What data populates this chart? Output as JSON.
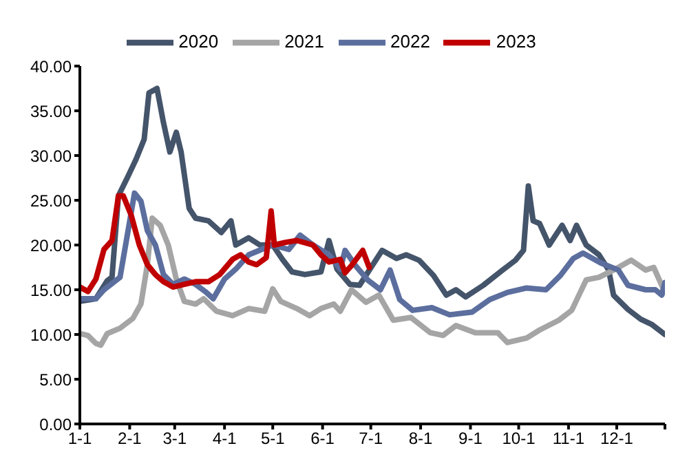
{
  "chart_data": {
    "type": "line",
    "legend": "top",
    "grid": false,
    "marker": "none",
    "line_style": "solid",
    "xlim": [
      "--01-01",
      "--12-31"
    ],
    "xticks": [
      {
        "value": "--01-01",
        "label": "1-1"
      },
      {
        "value": "--02-01",
        "label": "2-1"
      },
      {
        "value": "--03-01",
        "label": "3-1"
      },
      {
        "value": "--04-01",
        "label": "4-1"
      },
      {
        "value": "--05-01",
        "label": "5-1"
      },
      {
        "value": "--06-01",
        "label": "6-1"
      },
      {
        "value": "--07-01",
        "label": "7-1"
      },
      {
        "value": "--08-01",
        "label": "8-1"
      },
      {
        "value": "--09-01",
        "label": "9-1"
      },
      {
        "value": "--10-01",
        "label": "10-1"
      },
      {
        "value": "--11-01",
        "label": "11-1"
      },
      {
        "value": "--12-01",
        "label": "12-1"
      },
      {
        "value": "--12-31",
        "label": null
      }
    ],
    "ylim": [
      0,
      40
    ],
    "yticks": [
      {
        "value": 0,
        "label": "0.00"
      },
      {
        "value": 5,
        "label": "5.00"
      },
      {
        "value": 10,
        "label": "10.00"
      },
      {
        "value": 15,
        "label": "15.00"
      },
      {
        "value": 20,
        "label": "20.00"
      },
      {
        "value": 25,
        "label": "25.00"
      },
      {
        "value": 30,
        "label": "30.00"
      },
      {
        "value": 35,
        "label": "35.00"
      },
      {
        "value": 40,
        "label": "40.00"
      }
    ],
    "series": [
      {
        "name": "2020",
        "color": "#44546a",
        "x": [
          "--01-01",
          "--01-11",
          "--01-18",
          "--01-21",
          "--01-25",
          "--01-31",
          "--02-05",
          "--02-10",
          "--02-13",
          "--02-18",
          "--02-22",
          "--02-26",
          "--03-02",
          "--03-05",
          "--03-10",
          "--03-14",
          "--03-22",
          "--03-30",
          "--04-05",
          "--04-08",
          "--04-16",
          "--04-23",
          "--05-01",
          "--05-07",
          "--05-13",
          "--05-21",
          "--05-31",
          "--06-05",
          "--06-10",
          "--06-18",
          "--06-24",
          "--07-08",
          "--07-17",
          "--07-23",
          "--07-31",
          "--08-09",
          "--08-17",
          "--08-23",
          "--08-29",
          "--09-09",
          "--09-21",
          "--09-29",
          "--10-04",
          "--10-07",
          "--10-10",
          "--10-14",
          "--10-20",
          "--10-28",
          "--11-02",
          "--11-06",
          "--11-12",
          "--11-20",
          "--11-26",
          "--11-29",
          "--12-08",
          "--12-16",
          "--12-23",
          "--12-31"
        ],
        "values": [
          13.7,
          14,
          16,
          16.4,
          25.5,
          27.7,
          29.6,
          31.8,
          37,
          37.5,
          33.7,
          30.4,
          32.6,
          30.4,
          24.1,
          23,
          22.7,
          21.4,
          22.7,
          20,
          20.8,
          20,
          20,
          18.4,
          17,
          16.7,
          17,
          20.5,
          17.3,
          15.6,
          15.5,
          19.4,
          18.5,
          18.9,
          18.3,
          16.6,
          14.4,
          15,
          14.2,
          15.5,
          17.2,
          18.3,
          19.4,
          26.6,
          22.7,
          22.4,
          20,
          22.2,
          20.5,
          22.2,
          20,
          18.9,
          17.2,
          14.4,
          12.8,
          11.7,
          11.1,
          10
        ]
      },
      {
        "name": "2021",
        "color": "#a5a5a5",
        "x": [
          "--01-01",
          "--01-06",
          "--01-11",
          "--01-14",
          "--01-18",
          "--01-26",
          "--02-03",
          "--02-08",
          "--02-12",
          "--02-15",
          "--02-20",
          "--02-25",
          "--03-02",
          "--03-07",
          "--03-14",
          "--03-19",
          "--03-27",
          "--04-06",
          "--04-16",
          "--04-26",
          "--05-01",
          "--05-06",
          "--05-16",
          "--05-24",
          "--05-31",
          "--06-08",
          "--06-12",
          "--06-19",
          "--06-28",
          "--07-06",
          "--07-15",
          "--07-26",
          "--08-07",
          "--08-15",
          "--08-23",
          "--09-04",
          "--09-18",
          "--09-24",
          "--10-06",
          "--10-14",
          "--10-26",
          "--11-03",
          "--11-12",
          "--11-20",
          "--11-29",
          "--12-10",
          "--12-19",
          "--12-24",
          "--12-31"
        ],
        "values": [
          10.1,
          9.9,
          9,
          8.8,
          10.1,
          10.7,
          11.8,
          13.4,
          17.8,
          23,
          22.2,
          20,
          16.2,
          13.7,
          13.4,
          14,
          12.6,
          12.1,
          12.9,
          12.6,
          15.1,
          13.7,
          12.9,
          12.1,
          12.9,
          13.4,
          12.6,
          15,
          13.6,
          14.4,
          11.6,
          11.9,
          10.2,
          9.9,
          11,
          10.2,
          10.2,
          9.1,
          9.6,
          10.5,
          11.6,
          12.7,
          16.1,
          16.4,
          17.2,
          18.3,
          17.2,
          17.5,
          14.7
        ]
      },
      {
        "name": "2022",
        "color": "#5b6e9e",
        "x": [
          "--01-01",
          "--01-11",
          "--01-16",
          "--01-26",
          "--01-31",
          "--02-04",
          "--02-08",
          "--02-12",
          "--02-17",
          "--02-22",
          "--02-28",
          "--03-07",
          "--03-14",
          "--03-20",
          "--03-25",
          "--04-01",
          "--04-08",
          "--04-16",
          "--04-24",
          "--05-01",
          "--05-11",
          "--05-18",
          "--05-26",
          "--06-05",
          "--06-12",
          "--06-15",
          "--06-21",
          "--06-29",
          "--07-07",
          "--07-13",
          "--07-19",
          "--07-27",
          "--08-08",
          "--08-19",
          "--09-02",
          "--09-13",
          "--09-24",
          "--10-06",
          "--10-18",
          "--10-27",
          "--11-04",
          "--11-10",
          "--11-21",
          "--12-02",
          "--12-08",
          "--12-19",
          "--12-25",
          "--12-29",
          "--12-31"
        ],
        "values": [
          14,
          14,
          15,
          16.4,
          21.6,
          25.8,
          24.9,
          21.6,
          20,
          16.7,
          15.6,
          16.2,
          15.6,
          14.8,
          14,
          16.2,
          17.3,
          18.9,
          19.5,
          20,
          19.5,
          21.1,
          20,
          18.9,
          17.3,
          19.4,
          17.8,
          16.1,
          15,
          17.2,
          13.9,
          12.7,
          13,
          12.2,
          12.5,
          13.9,
          14.7,
          15.2,
          15,
          16.6,
          18.5,
          19.1,
          18,
          17.2,
          15.5,
          15,
          15,
          14.4,
          15.8
        ]
      },
      {
        "name": "2023",
        "color": "#c00000",
        "x": [
          "--01-01",
          "--01-06",
          "--01-11",
          "--01-16",
          "--01-21",
          "--01-25",
          "--01-28",
          "--02-02",
          "--02-07",
          "--02-12",
          "--02-17",
          "--02-22",
          "--02-28",
          "--03-07",
          "--03-14",
          "--03-22",
          "--03-29",
          "--04-06",
          "--04-11",
          "--04-16",
          "--04-21",
          "--04-27",
          "--04-30",
          "--05-02",
          "--05-09",
          "--05-16",
          "--05-26",
          "--05-31",
          "--06-05",
          "--06-12",
          "--06-15",
          "--06-19",
          "--06-26",
          "--06-30"
        ],
        "values": [
          15.3,
          14.8,
          16.2,
          19.5,
          20.5,
          25.5,
          25.5,
          23.3,
          20,
          17.8,
          16.7,
          15.9,
          15.3,
          15.6,
          15.9,
          15.9,
          16.7,
          18.4,
          18.9,
          18.1,
          17.8,
          18.6,
          23.8,
          20,
          20.3,
          20.5,
          20,
          18.9,
          18.1,
          18.4,
          16.9,
          17.7,
          19.4,
          17.5
        ]
      }
    ]
  }
}
